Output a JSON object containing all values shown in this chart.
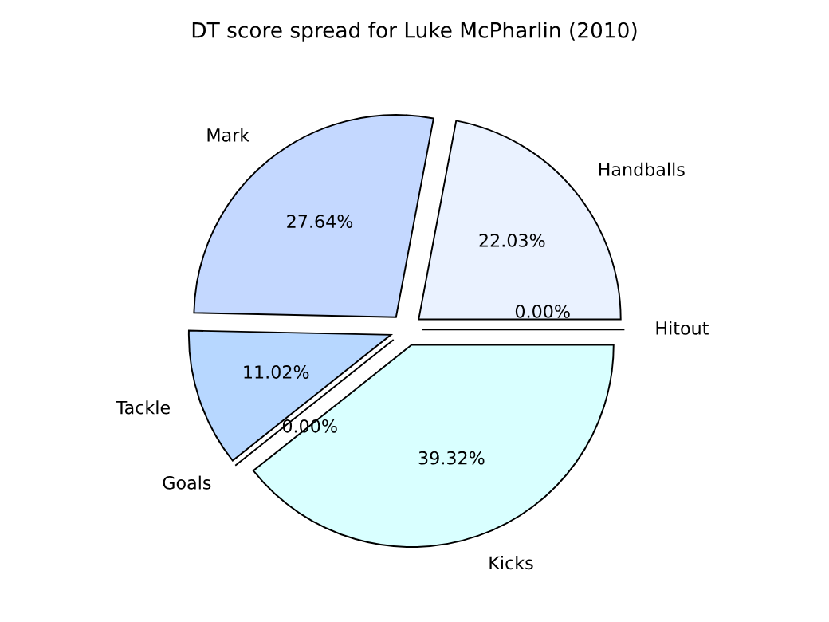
{
  "chart_data": {
    "type": "pie",
    "title": "DT score spread for Luke McPharlin (2010)",
    "categories": [
      "Handballs",
      "Mark",
      "Tackle",
      "Goals",
      "Kicks",
      "Hitout"
    ],
    "values": [
      22.03,
      27.64,
      11.02,
      0.0,
      39.32,
      0.0
    ],
    "value_labels": [
      "22.03%",
      "27.64%",
      "11.02%",
      "0.00%",
      "39.32%",
      "0.00%"
    ],
    "colors": [
      "#eaf2ff",
      "#c4d8ff",
      "#b7d7ff",
      "#b7d7ff",
      "#d9ffff",
      "#eaf2ff"
    ],
    "legend": false
  }
}
